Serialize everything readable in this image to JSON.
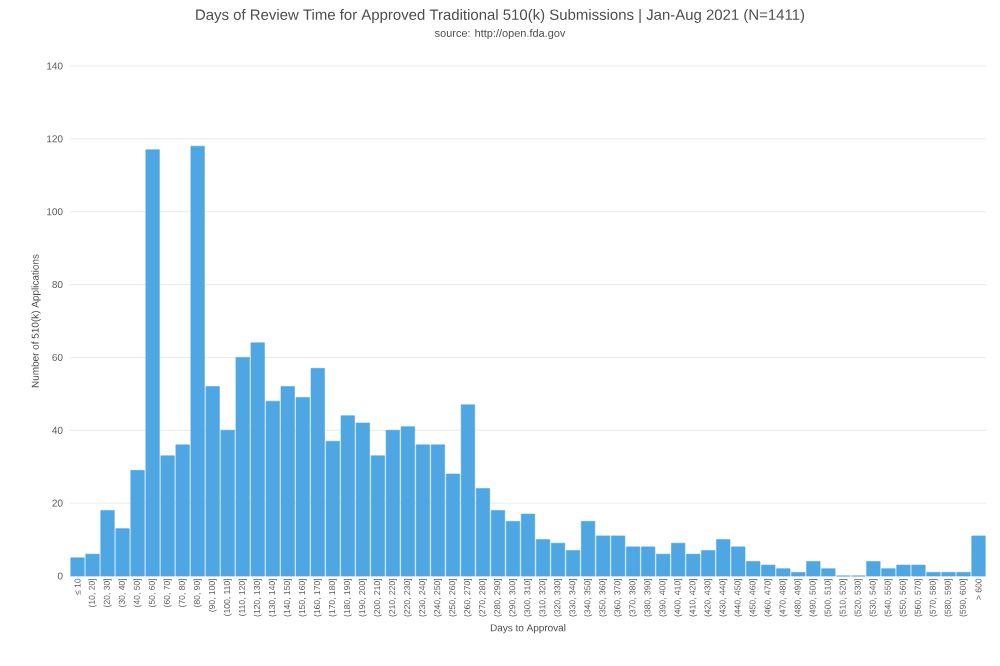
{
  "chart_data": {
    "type": "bar",
    "title": "Days of Review Time for Approved Traditional 510(k) Submissions | Jan-Aug 2021 (N=1411)",
    "subtitle": "source: http://open.fda.gov",
    "xlabel": "Days to Approval",
    "ylabel": "Number of 510(k) Applications",
    "categories": [
      "≤ 10",
      "(10, 20]",
      "(20, 30]",
      "(30, 40]",
      "(40, 50]",
      "(50, 60]",
      "(60, 70]",
      "(70, 80]",
      "(80, 90]",
      "(90, 100]",
      "(100, 110]",
      "(110, 120]",
      "(120, 130]",
      "(130, 140]",
      "(140, 150]",
      "(150, 160]",
      "(160, 170]",
      "(170, 180]",
      "(180, 190]",
      "(190, 200]",
      "(200, 210]",
      "(210, 220]",
      "(220, 230]",
      "(230, 240]",
      "(240, 250]",
      "(250, 260]",
      "(260, 270]",
      "(270, 280]",
      "(280, 290]",
      "(290, 300]",
      "(300, 310]",
      "(310, 320]",
      "(320, 330]",
      "(330, 340]",
      "(340, 350]",
      "(350, 360]",
      "(360, 370]",
      "(370, 380]",
      "(380, 390]",
      "(390, 400]",
      "(400, 410]",
      "(410, 420]",
      "(420, 430]",
      "(430, 440]",
      "(440, 450]",
      "(450, 460]",
      "(460, 470]",
      "(470, 480]",
      "(480, 490]",
      "(490, 500]",
      "(500, 510]",
      "(510, 520]",
      "(520, 530]",
      "(530, 540]",
      "(540, 550]",
      "(550, 560]",
      "(560, 570]",
      "(570, 580]",
      "(580, 590]",
      "(590, 600]",
      "> 600"
    ],
    "values": [
      5,
      6,
      18,
      13,
      29,
      117,
      33,
      36,
      118,
      52,
      40,
      60,
      64,
      48,
      52,
      49,
      57,
      37,
      44,
      42,
      33,
      40,
      41,
      36,
      36,
      28,
      47,
      24,
      18,
      15,
      17,
      10,
      9,
      7,
      15,
      11,
      11,
      8,
      8,
      6,
      9,
      6,
      7,
      10,
      8,
      4,
      3,
      2,
      1,
      4,
      2,
      0,
      0,
      4,
      2,
      3,
      3,
      1,
      1,
      1,
      11
    ],
    "color": "#4ea7e2",
    "ylim": [
      0,
      140
    ],
    "yticks": [
      0,
      20,
      40,
      60,
      80,
      100,
      120,
      140
    ],
    "grid": "y"
  }
}
